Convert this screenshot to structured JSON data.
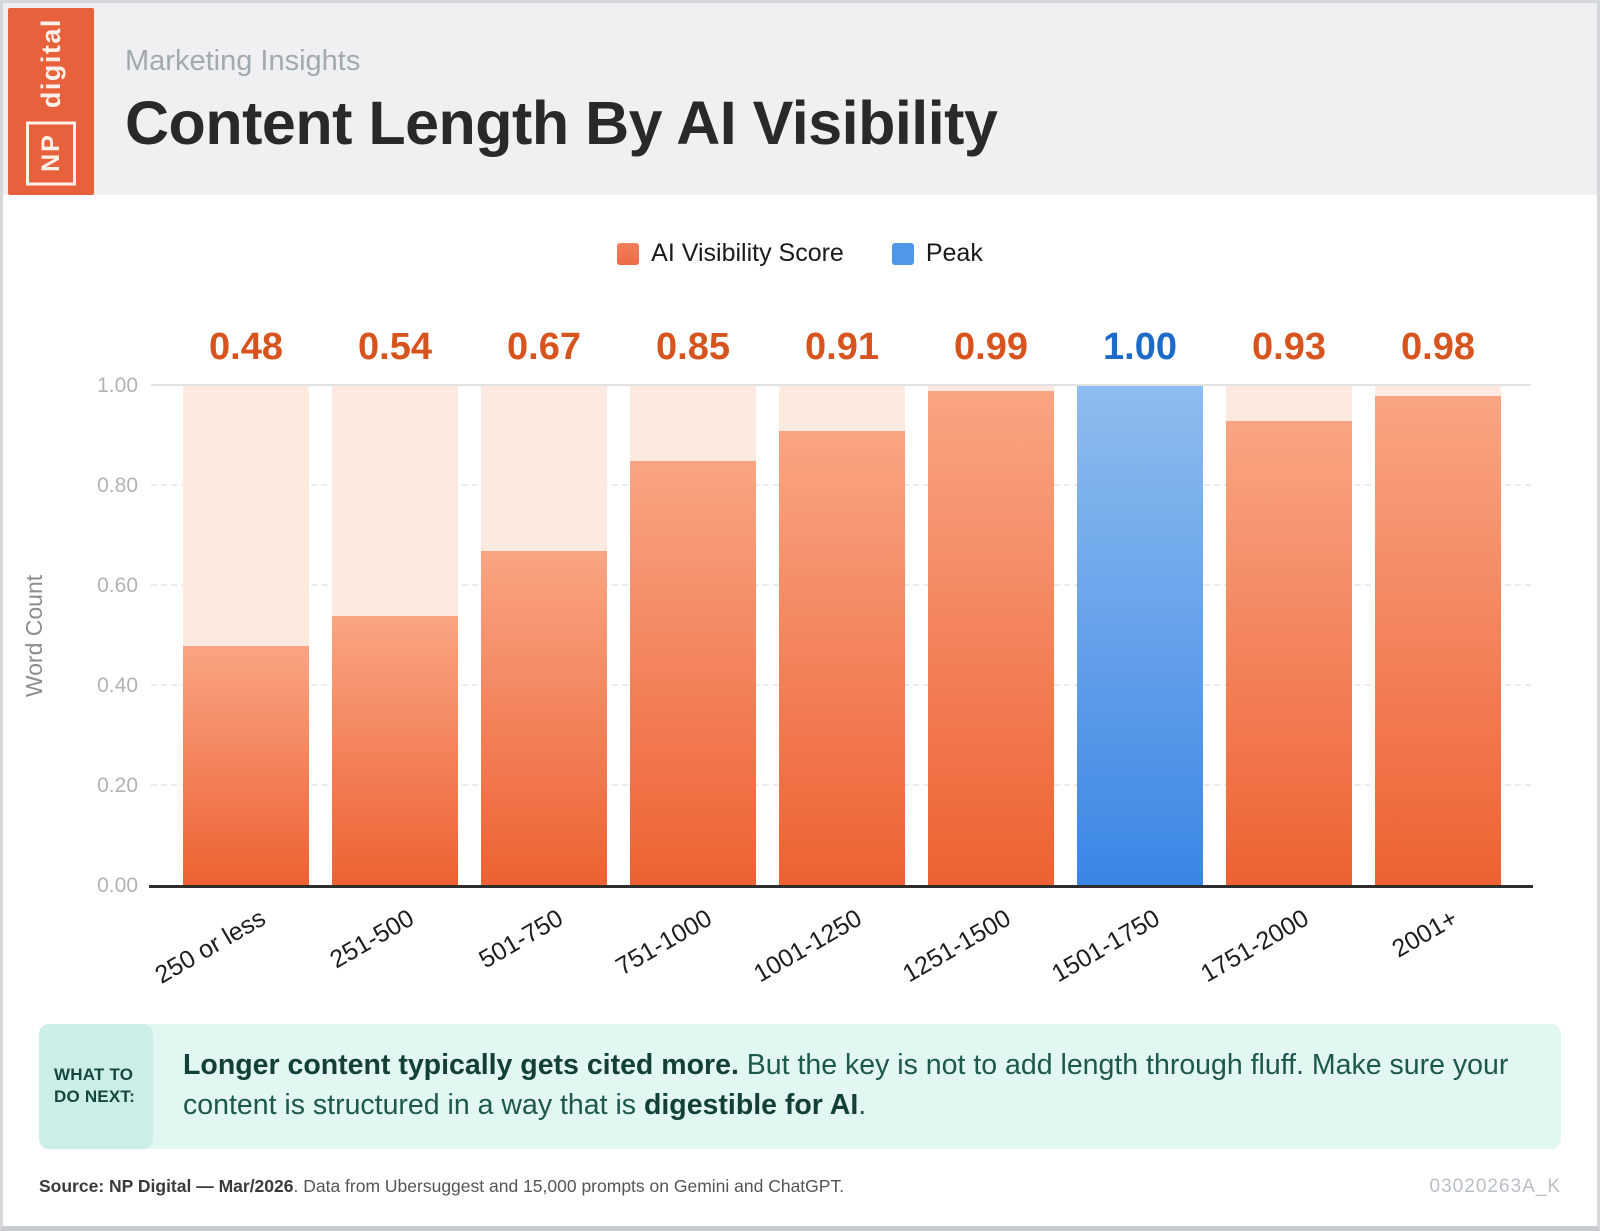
{
  "brand": {
    "np_label": "NP",
    "digital_label": "digital"
  },
  "header": {
    "eyebrow": "Marketing Insights",
    "title": "Content Length By AI Visibility"
  },
  "legend": [
    {
      "label": "AI Visibility Score",
      "color": "#ed6a45"
    },
    {
      "label": "Peak",
      "color": "#4f97e8"
    }
  ],
  "chart_data": {
    "type": "bar",
    "title": "Content Length By AI Visibility",
    "xlabel": "",
    "ylabel": "Word Count",
    "categories": [
      "250 or less",
      "251-500",
      "501-750",
      "751-1000",
      "1001-1250",
      "1251-1500",
      "1501-1750",
      "1751-2000",
      "2001+"
    ],
    "series": [
      {
        "name": "AI Visibility Score",
        "values": [
          0.48,
          0.54,
          0.67,
          0.85,
          0.91,
          0.99,
          1.0,
          0.93,
          0.98
        ]
      }
    ],
    "value_labels": [
      "0.48",
      "0.54",
      "0.67",
      "0.85",
      "0.91",
      "0.99",
      "1.00",
      "0.93",
      "0.98"
    ],
    "peak_index": 6,
    "ylim": [
      0,
      1
    ],
    "yticks": [
      "0.00",
      "0.20",
      "0.40",
      "0.60",
      "0.80",
      "1.00"
    ],
    "grid": "dashed horizontal at 0.20/0.40/0.60/0.80, solid at 1.00",
    "legend_position": "top center",
    "colors": {
      "track": "#fceae1",
      "bar_top": "#f9a583",
      "bar_bottom": "#ed6132",
      "peak_top": "#8fbcee",
      "peak_bottom": "#3a86e6",
      "value_orange": "#d8541e",
      "value_blue": "#1d6bc9",
      "legend_orange": "#ed6a45",
      "legend_blue": "#4f97e8"
    }
  },
  "callout": {
    "label": "WHAT TO DO NEXT:",
    "bold_lead": "Longer content typically gets cited more.",
    "body_mid": " But the key is not to add length through fluff. Make sure your content is structured in a way that is ",
    "bold_end": "digestible for AI",
    "tail": "."
  },
  "footer": {
    "source_bold": "Source: NP Digital — Mar/2026",
    "source_rest": ". Data from Ubersuggest and 15,000 prompts on Gemini and ChatGPT.",
    "code": "03020263A_K"
  }
}
